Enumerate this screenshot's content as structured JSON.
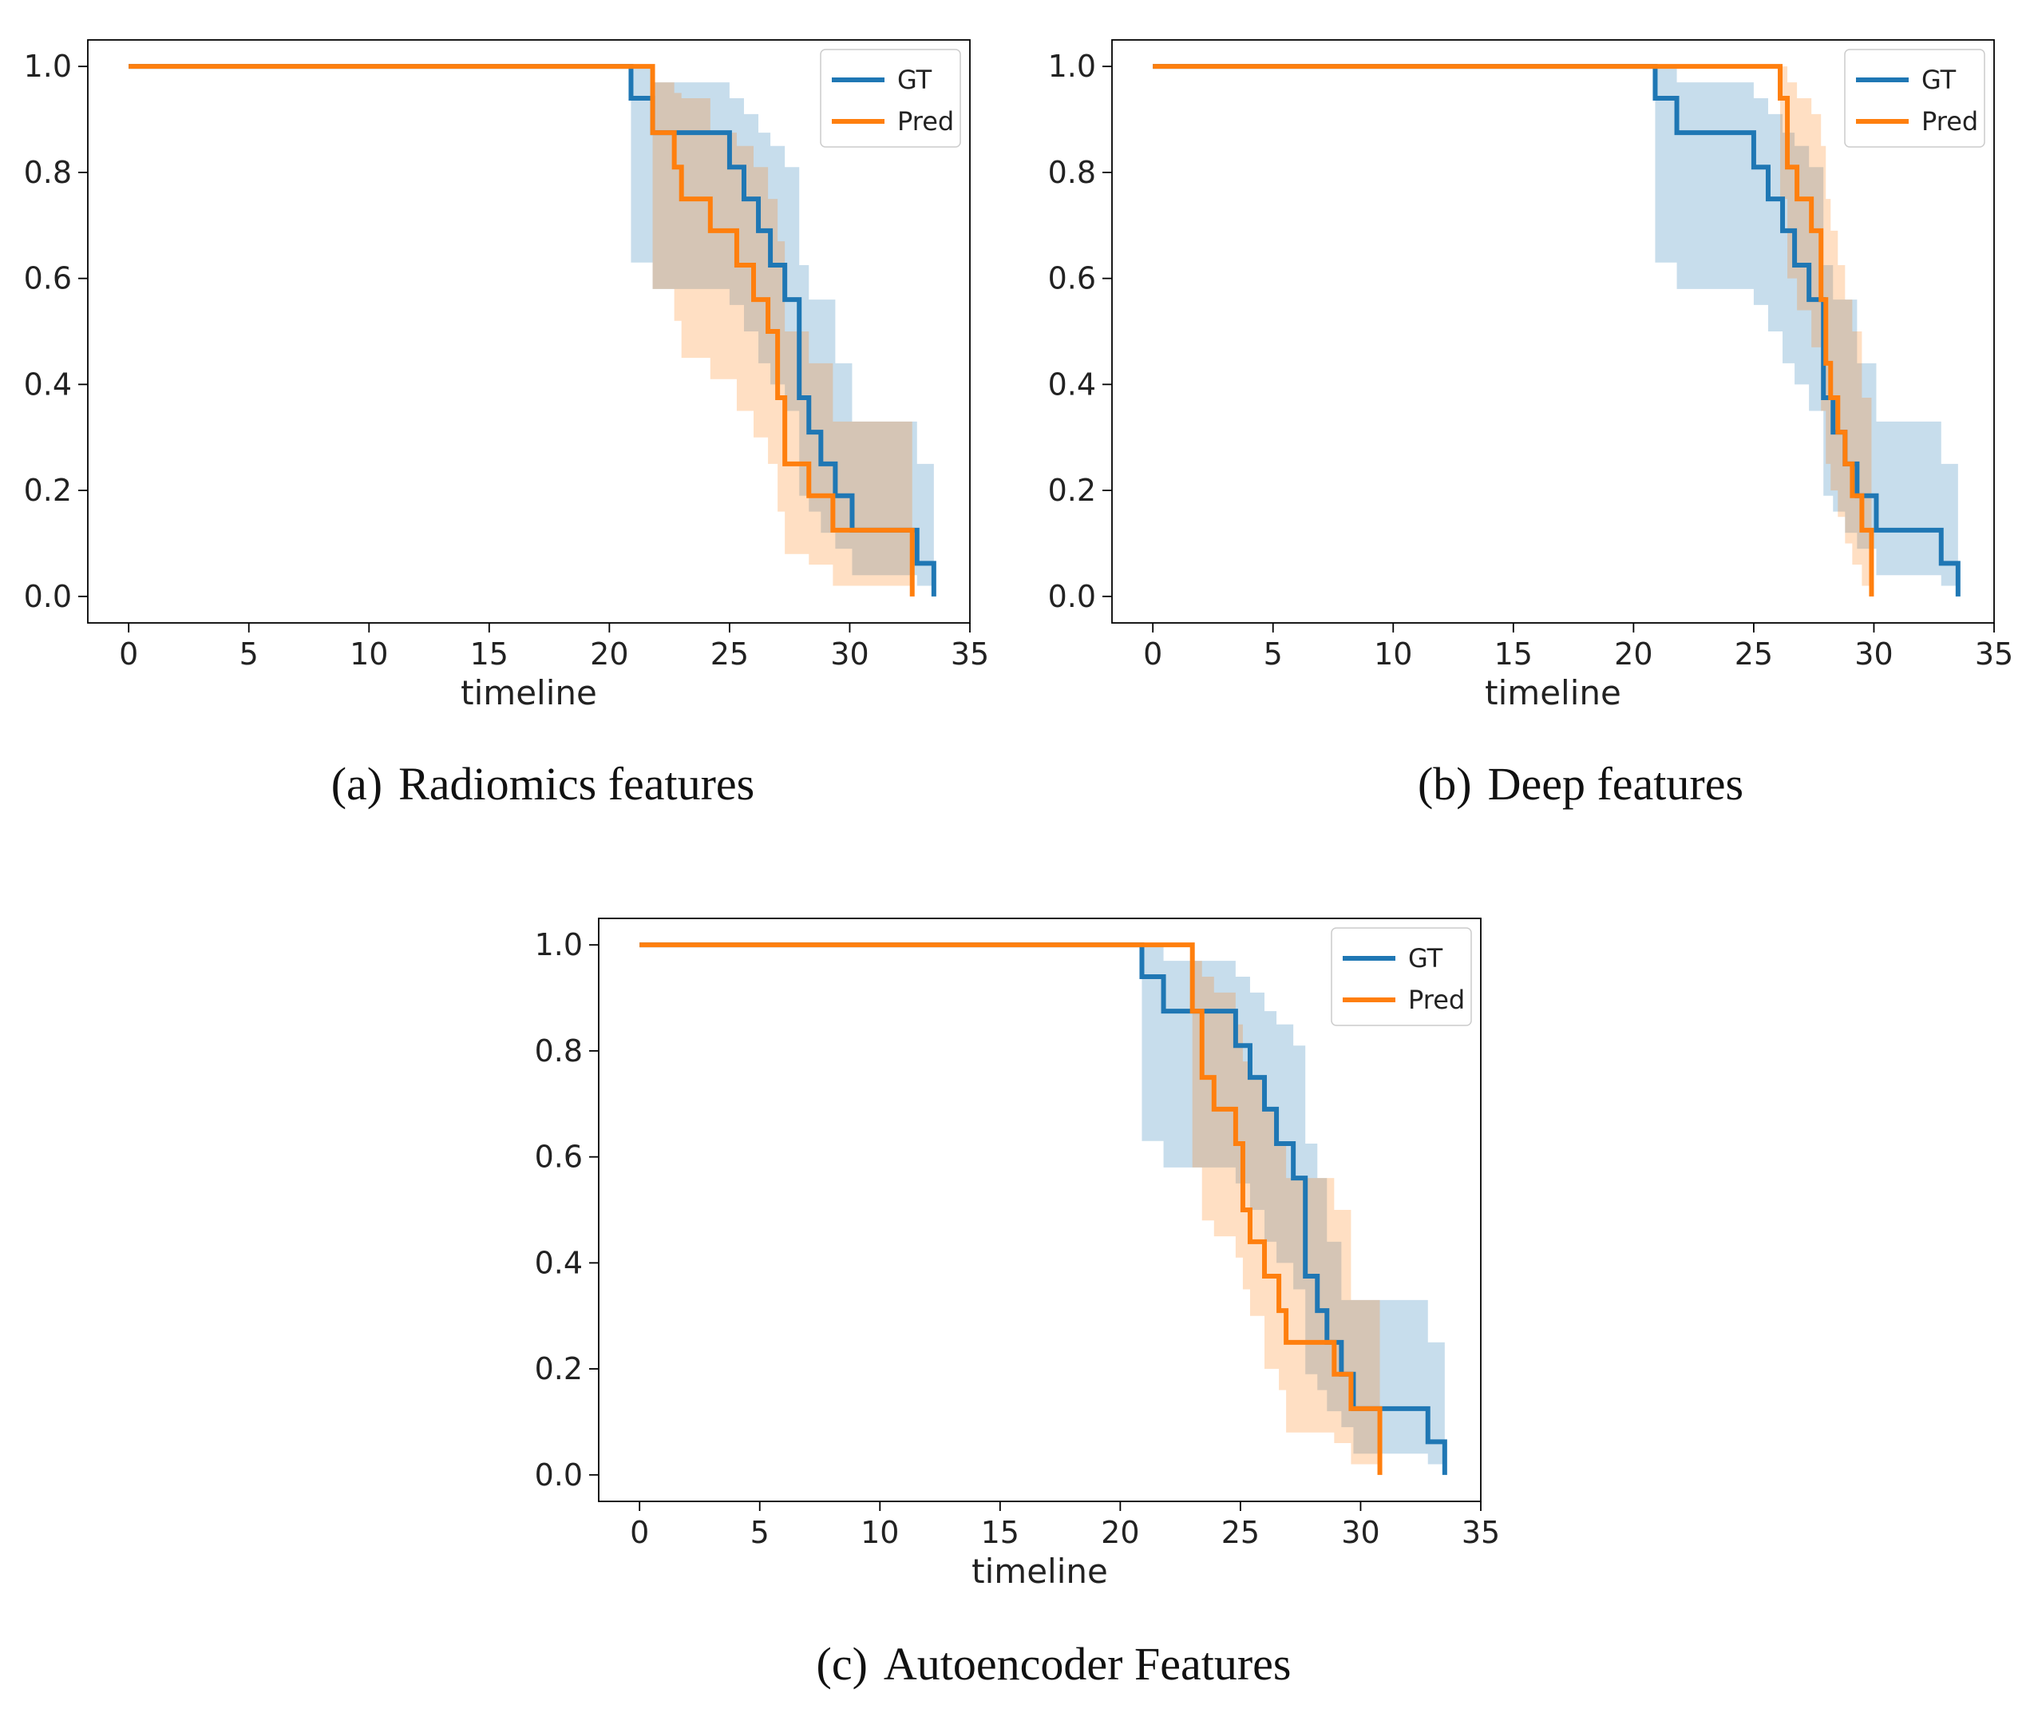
{
  "chart_data": [
    {
      "type": "line",
      "panel": "a",
      "caption_tag": "(a)",
      "caption_text": "Radiomics features",
      "xlabel": "timeline",
      "ylabel": "",
      "xlim": [
        -1.7,
        35
      ],
      "ylim": [
        -0.05,
        1.05
      ],
      "xticks": [
        "0",
        "5",
        "10",
        "15",
        "20",
        "25",
        "30",
        "35"
      ],
      "yticks": [
        "0.0",
        "0.2",
        "0.4",
        "0.6",
        "0.8",
        "1.0"
      ],
      "legend_position": "top-right",
      "series": [
        {
          "name": "GT",
          "color": "#1f77b4",
          "x": [
            0,
            20.9,
            21.8,
            25.0,
            25.6,
            26.2,
            26.7,
            27.3,
            27.9,
            28.3,
            28.8,
            29.4,
            30.1,
            32.8,
            33.3,
            33.5
          ],
          "y": [
            1.0,
            0.94,
            0.875,
            0.81,
            0.75,
            0.69,
            0.625,
            0.56,
            0.375,
            0.31,
            0.25,
            0.19,
            0.125,
            0.0625,
            0.0625,
            0.0
          ],
          "ci_upper": [
            1.0,
            1.0,
            0.97,
            0.94,
            0.91,
            0.875,
            0.85,
            0.81,
            0.625,
            0.56,
            0.56,
            0.44,
            0.33,
            0.25,
            0.25,
            0.25
          ],
          "ci_lower": [
            1.0,
            0.63,
            0.58,
            0.55,
            0.5,
            0.44,
            0.4,
            0.35,
            0.19,
            0.16,
            0.12,
            0.09,
            0.04,
            0.02,
            0.02,
            0.02
          ]
        },
        {
          "name": "Pred",
          "color": "#ff7f0e",
          "x": [
            0,
            21.8,
            22.7,
            23.0,
            24.2,
            25.3,
            26.0,
            26.6,
            27.0,
            27.3,
            28.3,
            29.3,
            32.6
          ],
          "y": [
            1.0,
            0.875,
            0.81,
            0.75,
            0.69,
            0.625,
            0.56,
            0.5,
            0.375,
            0.25,
            0.19,
            0.125,
            0.0
          ],
          "ci_upper": [
            1.0,
            0.97,
            0.95,
            0.94,
            0.875,
            0.85,
            0.81,
            0.75,
            0.67,
            0.5,
            0.44,
            0.33,
            0.33
          ],
          "ci_lower": [
            1.0,
            0.58,
            0.52,
            0.45,
            0.41,
            0.35,
            0.3,
            0.25,
            0.16,
            0.08,
            0.06,
            0.02,
            0.02
          ]
        }
      ]
    },
    {
      "type": "line",
      "panel": "b",
      "caption_tag": "(b)",
      "caption_text": "Deep features",
      "xlabel": "timeline",
      "ylabel": "",
      "xlim": [
        -1.7,
        35
      ],
      "ylim": [
        -0.05,
        1.05
      ],
      "xticks": [
        "0",
        "5",
        "10",
        "15",
        "20",
        "25",
        "30",
        "35"
      ],
      "yticks": [
        "0.0",
        "0.2",
        "0.4",
        "0.6",
        "0.8",
        "1.0"
      ],
      "legend_position": "top-right",
      "series": [
        {
          "name": "GT",
          "color": "#1f77b4",
          "x": [
            0,
            20.9,
            21.8,
            25.0,
            25.6,
            26.2,
            26.7,
            27.3,
            27.9,
            28.3,
            28.8,
            29.3,
            30.1,
            32.8,
            33.3,
            33.5
          ],
          "y": [
            1.0,
            0.94,
            0.875,
            0.81,
            0.75,
            0.69,
            0.625,
            0.56,
            0.375,
            0.31,
            0.25,
            0.19,
            0.125,
            0.0625,
            0.0625,
            0.0
          ],
          "ci_upper": [
            1.0,
            1.0,
            0.97,
            0.94,
            0.91,
            0.875,
            0.85,
            0.81,
            0.625,
            0.56,
            0.56,
            0.44,
            0.33,
            0.25,
            0.25,
            0.25
          ],
          "ci_lower": [
            1.0,
            0.63,
            0.58,
            0.55,
            0.5,
            0.44,
            0.4,
            0.35,
            0.19,
            0.16,
            0.12,
            0.09,
            0.04,
            0.02,
            0.02,
            0.02
          ]
        },
        {
          "name": "Pred",
          "color": "#ff7f0e",
          "x": [
            0,
            26.1,
            26.4,
            26.8,
            27.4,
            27.8,
            28.0,
            28.2,
            28.5,
            28.8,
            29.1,
            29.5,
            29.9
          ],
          "y": [
            1.0,
            0.94,
            0.81,
            0.75,
            0.69,
            0.56,
            0.44,
            0.375,
            0.31,
            0.25,
            0.19,
            0.125,
            0.0
          ],
          "ci_upper": [
            1.0,
            1.0,
            0.97,
            0.94,
            0.91,
            0.85,
            0.75,
            0.69,
            0.625,
            0.56,
            0.5,
            0.375,
            0.2
          ],
          "ci_lower": [
            1.0,
            0.75,
            0.6,
            0.54,
            0.47,
            0.35,
            0.25,
            0.2,
            0.15,
            0.1,
            0.06,
            0.02,
            0.02
          ]
        }
      ]
    },
    {
      "type": "line",
      "panel": "c",
      "caption_tag": "(c)",
      "caption_text": "Autoencoder Features",
      "xlabel": "timeline",
      "ylabel": "",
      "xlim": [
        -1.7,
        35
      ],
      "ylim": [
        -0.05,
        1.05
      ],
      "xticks": [
        "0",
        "5",
        "10",
        "15",
        "20",
        "25",
        "30",
        "35"
      ],
      "yticks": [
        "0.0",
        "0.2",
        "0.4",
        "0.6",
        "0.8",
        "1.0"
      ],
      "legend_position": "top-right",
      "series": [
        {
          "name": "GT",
          "color": "#1f77b4",
          "x": [
            0,
            20.9,
            21.8,
            24.8,
            25.4,
            26.0,
            26.5,
            27.2,
            27.7,
            28.2,
            28.6,
            29.2,
            29.7,
            32.8,
            33.3,
            33.5
          ],
          "y": [
            1.0,
            0.94,
            0.875,
            0.81,
            0.75,
            0.69,
            0.625,
            0.56,
            0.375,
            0.31,
            0.25,
            0.19,
            0.125,
            0.0625,
            0.0625,
            0.0
          ],
          "ci_upper": [
            1.0,
            1.0,
            0.97,
            0.94,
            0.91,
            0.875,
            0.85,
            0.81,
            0.625,
            0.56,
            0.44,
            0.33,
            0.33,
            0.25,
            0.25,
            0.25
          ],
          "ci_lower": [
            1.0,
            0.63,
            0.58,
            0.55,
            0.5,
            0.44,
            0.4,
            0.35,
            0.19,
            0.16,
            0.12,
            0.09,
            0.04,
            0.02,
            0.02,
            0.02
          ]
        },
        {
          "name": "Pred",
          "color": "#ff7f0e",
          "x": [
            0,
            23.0,
            23.4,
            23.9,
            24.8,
            25.1,
            25.4,
            26.0,
            26.6,
            26.9,
            28.9,
            29.6,
            30.8
          ],
          "y": [
            1.0,
            0.875,
            0.75,
            0.69,
            0.625,
            0.5,
            0.44,
            0.375,
            0.31,
            0.25,
            0.19,
            0.125,
            0.0
          ],
          "ci_upper": [
            1.0,
            0.97,
            0.94,
            0.91,
            0.85,
            0.78,
            0.75,
            0.69,
            0.625,
            0.56,
            0.5,
            0.33,
            0.33
          ],
          "ci_lower": [
            1.0,
            0.58,
            0.48,
            0.45,
            0.41,
            0.35,
            0.3,
            0.2,
            0.16,
            0.08,
            0.06,
            0.02,
            0.02
          ]
        }
      ]
    }
  ]
}
